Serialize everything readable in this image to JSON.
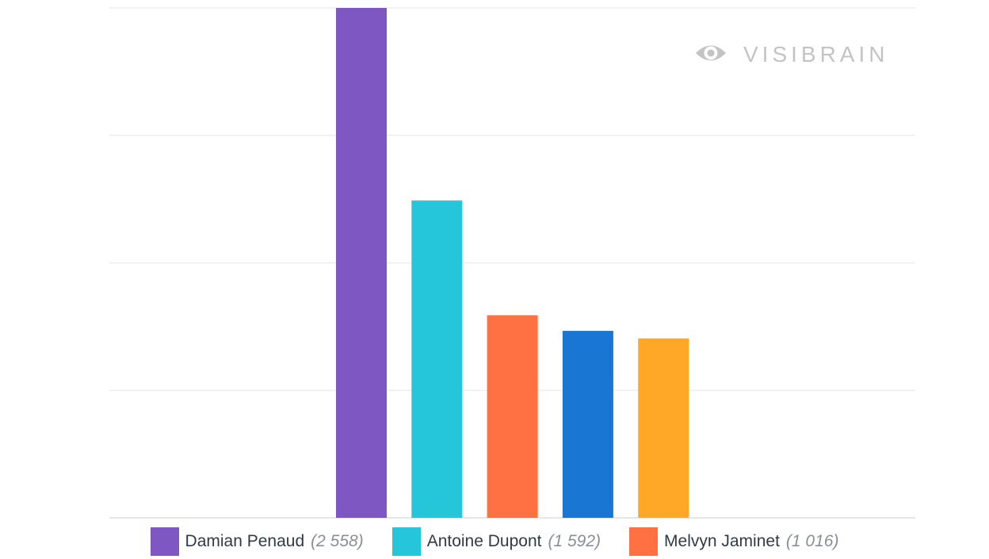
{
  "watermark": {
    "text": "VISIBRAIN",
    "icon": "eye-icon",
    "color": "#c4c4c4"
  },
  "chart_data": {
    "type": "bar",
    "categories": [
      "Damian Penaud",
      "Antoine Dupont",
      "Melvyn Jaminet",
      "",
      ""
    ],
    "values": [
      2558,
      1592,
      1016,
      938,
      900
    ],
    "colors": [
      "#7e57c2",
      "#26c6da",
      "#ff7043",
      "#1976d2",
      "#ffa726"
    ],
    "ylim": [
      0,
      2558
    ],
    "grid": true,
    "legend_position": "bottom"
  },
  "legend": [
    {
      "name": "Damian Penaud",
      "value": "(2 558)",
      "color": "#7e57c2"
    },
    {
      "name": "Antoine Dupont",
      "value": "(1 592)",
      "color": "#26c6da"
    },
    {
      "name": "Melvyn Jaminet",
      "value": "(1 016)",
      "color": "#ff7043"
    }
  ]
}
